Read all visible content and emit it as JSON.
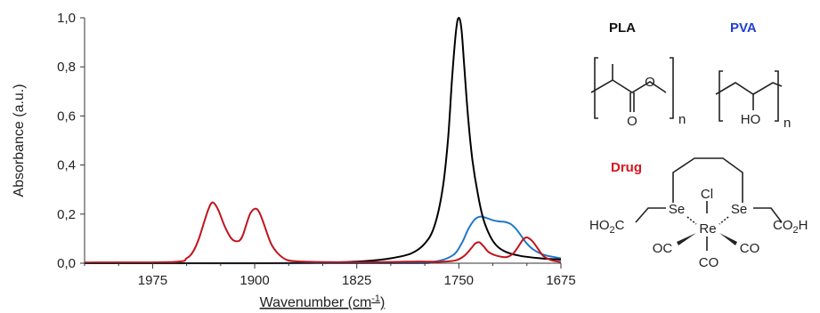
{
  "chart_data": {
    "type": "line",
    "xlabel": "Wavenumber (cm",
    "xlabel_sup": "-1",
    "xlabel_close": ")",
    "ylabel": "Absorbance (a.u.)",
    "xlim": [
      2025,
      1675
    ],
    "ylim": [
      0,
      1.0
    ],
    "x_reversed": true,
    "x_ticks": [
      {
        "value": 1975,
        "label": "1975"
      },
      {
        "value": 1900,
        "label": "1900"
      },
      {
        "value": 1825,
        "label": "1825"
      },
      {
        "value": 1750,
        "label": "1750"
      },
      {
        "value": 1675,
        "label": "1675"
      }
    ],
    "y_ticks": [
      {
        "value": 0.0,
        "label": "0,0"
      },
      {
        "value": 0.2,
        "label": "0,2"
      },
      {
        "value": 0.4,
        "label": "0,4"
      },
      {
        "value": 0.6,
        "label": "0,6"
      },
      {
        "value": 0.8,
        "label": "0,8"
      },
      {
        "value": 1.0,
        "label": "1,0"
      }
    ],
    "grid": false,
    "series": [
      {
        "color": "#000000",
        "x": [
          2025,
          1900,
          1850,
          1820,
          1800,
          1785,
          1775,
          1768,
          1762,
          1758,
          1755,
          1752,
          1750,
          1748,
          1746,
          1743,
          1740,
          1736,
          1732,
          1727,
          1722,
          1715,
          1705,
          1690,
          1675
        ],
        "y": [
          0.0,
          0.0,
          0.002,
          0.008,
          0.02,
          0.04,
          0.08,
          0.15,
          0.3,
          0.5,
          0.75,
          0.95,
          1.0,
          0.95,
          0.8,
          0.58,
          0.42,
          0.28,
          0.18,
          0.11,
          0.07,
          0.045,
          0.03,
          0.02,
          0.015
        ]
      },
      {
        "color": "#1f77c8",
        "x": [
          2025,
          1800,
          1770,
          1755,
          1748,
          1743,
          1738,
          1734,
          1730,
          1725,
          1720,
          1716,
          1712,
          1708,
          1704,
          1700,
          1695,
          1688,
          1680,
          1675
        ],
        "y": [
          0.0,
          0.0,
          0.005,
          0.03,
          0.08,
          0.14,
          0.18,
          0.19,
          0.185,
          0.175,
          0.17,
          0.168,
          0.16,
          0.14,
          0.11,
          0.08,
          0.055,
          0.035,
          0.025,
          0.02
        ]
      },
      {
        "color": "#c0141c",
        "x": [
          2025,
          1960,
          1950,
          1945,
          1941,
          1937,
          1934,
          1931,
          1927,
          1922,
          1917,
          1912,
          1909,
          1906,
          1903,
          1899,
          1896,
          1892,
          1888,
          1883,
          1877,
          1870,
          1855,
          1830,
          1800,
          1780,
          1770,
          1762,
          1752,
          1746,
          1741,
          1738,
          1735,
          1732,
          1728,
          1722,
          1715,
          1710,
          1706,
          1703,
          1700,
          1696,
          1692,
          1688,
          1682,
          1675
        ],
        "y": [
          0.003,
          0.005,
          0.02,
          0.05,
          0.1,
          0.17,
          0.22,
          0.248,
          0.22,
          0.15,
          0.1,
          0.09,
          0.11,
          0.16,
          0.205,
          0.222,
          0.2,
          0.14,
          0.08,
          0.04,
          0.015,
          0.008,
          0.005,
          0.004,
          0.005,
          0.007,
          0.006,
          0.006,
          0.012,
          0.03,
          0.06,
          0.08,
          0.085,
          0.07,
          0.045,
          0.03,
          0.025,
          0.04,
          0.07,
          0.095,
          0.105,
          0.09,
          0.06,
          0.03,
          0.012,
          0.005
        ]
      }
    ]
  },
  "structures": {
    "pla": {
      "title": "PLA",
      "title_color": "#111111",
      "atom_o1": "O",
      "atom_o2": "O",
      "sub_n": "n"
    },
    "pva": {
      "title": "PVA",
      "title_color": "#1f3fd6",
      "atom_ho": "HO",
      "sub_n": "n"
    },
    "drug": {
      "title": "Drug",
      "title_color": "#d8141c",
      "atom_cl": "Cl",
      "atom_re": "Re",
      "atom_se1": "Se",
      "atom_se2": "Se",
      "group_left": "HO",
      "group_left_sub": "2",
      "group_left_tail": "C",
      "group_right": "CO",
      "group_right_sub": "2",
      "group_right_tail": "H",
      "ligand_oc": "OC",
      "ligand_co_right": "CO",
      "ligand_co_bottom": "CO"
    }
  }
}
